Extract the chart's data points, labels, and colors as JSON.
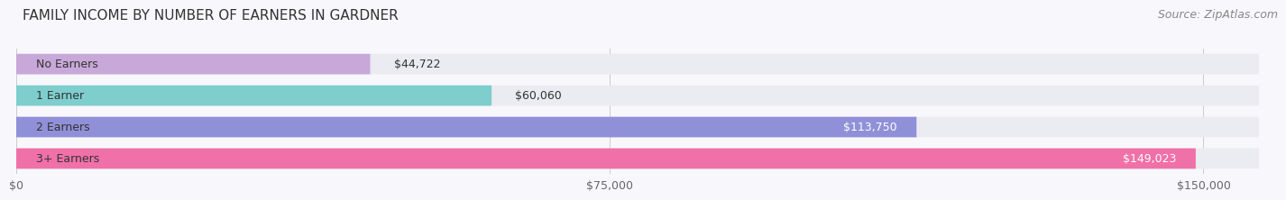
{
  "title": "FAMILY INCOME BY NUMBER OF EARNERS IN GARDNER",
  "source": "Source: ZipAtlas.com",
  "categories": [
    "No Earners",
    "1 Earner",
    "2 Earners",
    "3+ Earners"
  ],
  "values": [
    44722,
    60060,
    113750,
    149023
  ],
  "bar_colors": [
    "#c8a8d8",
    "#7ecece",
    "#9090d8",
    "#f070a8"
  ],
  "bar_bg_color": "#ebebf2",
  "label_values": [
    "$44,722",
    "$60,060",
    "$113,750",
    "$149,023"
  ],
  "x_ticks": [
    0,
    75000,
    150000
  ],
  "x_tick_labels": [
    "$0",
    "$75,000",
    "$150,000"
  ],
  "xlim": [
    0,
    157000
  ],
  "title_fontsize": 11,
  "source_fontsize": 9,
  "tick_fontsize": 9,
  "cat_fontsize": 9,
  "val_fontsize": 9,
  "background_color": "#f8f8fc"
}
